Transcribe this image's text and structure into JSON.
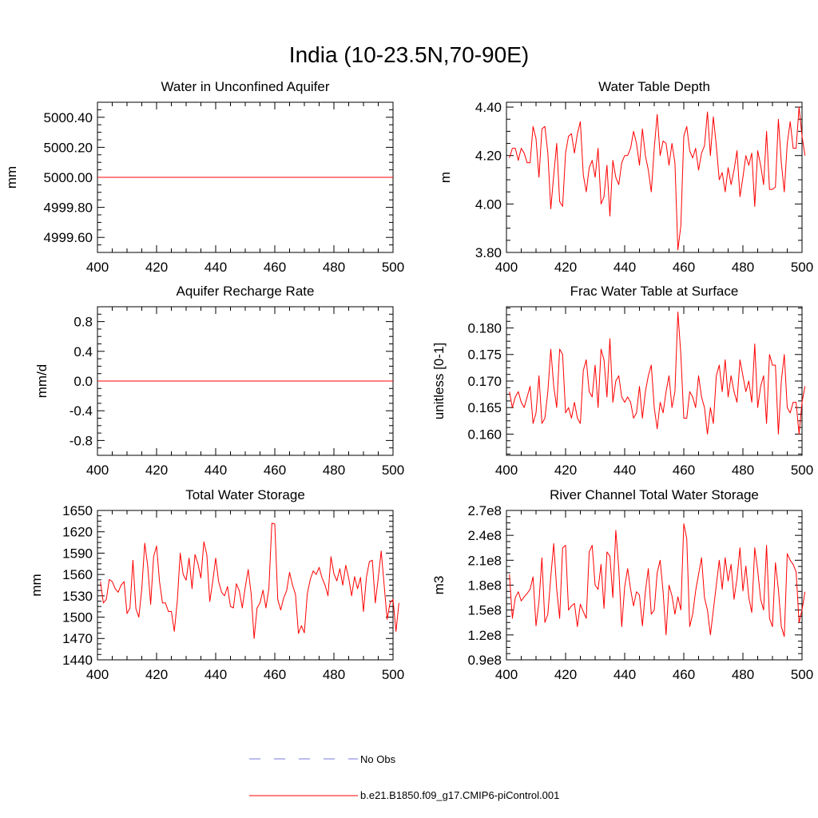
{
  "title": "India (10-23.5N,70-90E)",
  "colors": {
    "series": "#ff0000",
    "obs": "#7a7adc",
    "axis": "#000000"
  },
  "legend": {
    "obs_label": "No Obs",
    "model_label": "b.e21.B1850.f09_g17.CMIP6-piControl.001"
  },
  "chart_data": [
    {
      "type": "line",
      "title": "Water in Unconfined Aquifer",
      "xlabel": "",
      "ylabel": "mm",
      "xlim": [
        400,
        500
      ],
      "ylim": [
        4999.5,
        5000.5
      ],
      "xticks": [
        400,
        420,
        440,
        460,
        480,
        500
      ],
      "xtick_labels": [
        "400",
        "420",
        "440",
        "460",
        "480",
        "500"
      ],
      "yticks": [
        4999.6,
        4999.8,
        5000.0,
        5000.2,
        5000.4
      ],
      "ytick_labels": [
        "4999.60",
        "4999.80",
        "5000.00",
        "5000.20",
        "5000.40"
      ],
      "series": [
        {
          "name": "b.e21.B1850.f09_g17.CMIP6-piControl.001",
          "x": [
            400,
            500
          ],
          "values": [
            5000.0,
            5000.0
          ]
        }
      ]
    },
    {
      "type": "line",
      "title": "Water Table Depth",
      "xlabel": "",
      "ylabel": "m",
      "xlim": [
        400,
        500
      ],
      "ylim": [
        3.8,
        4.42
      ],
      "xticks": [
        400,
        420,
        440,
        460,
        480,
        500
      ],
      "xtick_labels": [
        "400",
        "420",
        "440",
        "460",
        "480",
        "500"
      ],
      "yticks": [
        3.8,
        4.0,
        4.2,
        4.4
      ],
      "ytick_labels": [
        "3.80",
        "4.00",
        "4.20",
        "4.40"
      ],
      "series": [
        {
          "name": "b.e21.B1850.f09_g17.CMIP6-piControl.001",
          "x_start": 401,
          "x_step": 1,
          "values": [
            4.19,
            4.23,
            4.23,
            4.18,
            4.23,
            4.21,
            4.17,
            4.17,
            4.32,
            4.27,
            4.11,
            4.31,
            4.32,
            4.21,
            3.98,
            4.12,
            4.25,
            4.01,
            3.99,
            4.21,
            4.28,
            4.29,
            4.21,
            4.29,
            4.34,
            4.12,
            4.05,
            4.15,
            4.18,
            4.11,
            4.23,
            4.0,
            4.03,
            4.16,
            3.95,
            4.18,
            4.11,
            4.08,
            4.17,
            4.2,
            4.2,
            4.23,
            4.3,
            4.25,
            4.16,
            4.31,
            4.2,
            4.14,
            4.05,
            4.23,
            4.37,
            4.2,
            4.26,
            4.25,
            4.16,
            4.25,
            4.17,
            3.81,
            3.91,
            4.28,
            4.32,
            4.22,
            4.19,
            4.23,
            4.14,
            4.21,
            4.24,
            4.38,
            4.2,
            4.36,
            4.24,
            4.1,
            4.13,
            4.05,
            4.15,
            4.08,
            4.14,
            4.22,
            4.03,
            4.11,
            4.2,
            4.16,
            4.21,
            3.99,
            4.22,
            4.16,
            4.08,
            4.3,
            4.06,
            4.06,
            4.07,
            4.35,
            4.17,
            4.05,
            4.25,
            4.34,
            4.23,
            4.23,
            4.4,
            4.28,
            4.2
          ]
        }
      ]
    },
    {
      "type": "line",
      "title": "Aquifer Recharge Rate",
      "xlabel": "",
      "ylabel": "mm/d",
      "xlim": [
        400,
        500
      ],
      "ylim": [
        -1.0,
        1.0
      ],
      "xticks": [
        400,
        420,
        440,
        460,
        480,
        500
      ],
      "xtick_labels": [
        "400",
        "420",
        "440",
        "460",
        "480",
        "500"
      ],
      "yticks": [
        -0.8,
        -0.4,
        0.0,
        0.4,
        0.8
      ],
      "ytick_labels": [
        "-0.8",
        "-0.4",
        "0.0",
        "0.4",
        "0.8"
      ],
      "series": [
        {
          "name": "b.e21.B1850.f09_g17.CMIP6-piControl.001",
          "x": [
            400,
            500
          ],
          "values": [
            0.0,
            0.0
          ]
        }
      ]
    },
    {
      "type": "line",
      "title": "Frac Water Table at Surface",
      "xlabel": "",
      "ylabel": "unitless [0-1]",
      "xlim": [
        400,
        500
      ],
      "ylim": [
        0.156,
        0.184
      ],
      "xticks": [
        400,
        420,
        440,
        460,
        480,
        500
      ],
      "xtick_labels": [
        "400",
        "420",
        "440",
        "460",
        "480",
        "500"
      ],
      "yticks": [
        0.16,
        0.165,
        0.17,
        0.175,
        0.18
      ],
      "ytick_labels": [
        "0.160",
        "0.165",
        "0.170",
        "0.175",
        "0.180"
      ],
      "series": [
        {
          "name": "b.e21.B1850.f09_g17.CMIP6-piControl.001",
          "x_start": 401,
          "x_step": 1,
          "values": [
            0.168,
            0.165,
            0.167,
            0.168,
            0.166,
            0.165,
            0.167,
            0.169,
            0.162,
            0.164,
            0.171,
            0.162,
            0.163,
            0.168,
            0.176,
            0.169,
            0.165,
            0.176,
            0.175,
            0.164,
            0.165,
            0.163,
            0.166,
            0.163,
            0.162,
            0.172,
            0.174,
            0.168,
            0.167,
            0.173,
            0.165,
            0.176,
            0.174,
            0.167,
            0.178,
            0.166,
            0.17,
            0.171,
            0.167,
            0.166,
            0.167,
            0.166,
            0.163,
            0.164,
            0.169,
            0.163,
            0.168,
            0.171,
            0.173,
            0.165,
            0.161,
            0.166,
            0.164,
            0.168,
            0.171,
            0.165,
            0.168,
            0.183,
            0.175,
            0.163,
            0.163,
            0.168,
            0.167,
            0.165,
            0.171,
            0.167,
            0.165,
            0.16,
            0.165,
            0.162,
            0.171,
            0.173,
            0.168,
            0.174,
            0.167,
            0.171,
            0.168,
            0.166,
            0.174,
            0.171,
            0.168,
            0.17,
            0.166,
            0.177,
            0.165,
            0.169,
            0.171,
            0.162,
            0.175,
            0.173,
            0.173,
            0.16,
            0.17,
            0.175,
            0.165,
            0.164,
            0.166,
            0.166,
            0.16,
            0.166,
            0.169
          ]
        }
      ]
    },
    {
      "type": "line",
      "title": "Total Water Storage",
      "xlabel": "",
      "ylabel": "mm",
      "xlim": [
        400,
        500
      ],
      "ylim": [
        1440,
        1650
      ],
      "xticks": [
        400,
        420,
        440,
        460,
        480,
        500
      ],
      "xtick_labels": [
        "400",
        "420",
        "440",
        "460",
        "480",
        "500"
      ],
      "yticks": [
        1440,
        1470,
        1500,
        1530,
        1560,
        1590,
        1620,
        1650
      ],
      "ytick_labels": [
        "1440",
        "1470",
        "1500",
        "1530",
        "1560",
        "1590",
        "1620",
        "1650"
      ],
      "series": [
        {
          "name": "b.e21.B1850.f09_g17.CMIP6-piControl.001",
          "x_start": 401,
          "x_step": 1,
          "values": [
            1550,
            1520,
            1525,
            1553,
            1550,
            1540,
            1535,
            1545,
            1550,
            1505,
            1513,
            1580,
            1512,
            1500,
            1540,
            1604,
            1572,
            1518,
            1585,
            1600,
            1550,
            1520,
            1520,
            1508,
            1508,
            1480,
            1522,
            1590,
            1560,
            1552,
            1583,
            1540,
            1588,
            1575,
            1555,
            1606,
            1588,
            1522,
            1550,
            1583,
            1550,
            1535,
            1530,
            1543,
            1515,
            1513,
            1547,
            1537,
            1513,
            1542,
            1567,
            1533,
            1470,
            1513,
            1520,
            1538,
            1513,
            1540,
            1632,
            1631,
            1525,
            1510,
            1527,
            1537,
            1563,
            1545,
            1532,
            1477,
            1488,
            1478,
            1533,
            1553,
            1565,
            1560,
            1570,
            1555,
            1545,
            1530,
            1585,
            1561,
            1551,
            1568,
            1545,
            1573,
            1555,
            1530,
            1557,
            1540,
            1556,
            1508,
            1556,
            1578,
            1580,
            1520,
            1555,
            1593,
            1545,
            1497,
            1520,
            1525,
            1480,
            1520
          ]
        }
      ]
    },
    {
      "type": "line",
      "title": "River Channel Total Water Storage",
      "xlabel": "",
      "ylabel": "m3",
      "xlim": [
        400,
        500
      ],
      "ylim": [
        90000000,
        270000000
      ],
      "xticks": [
        400,
        420,
        440,
        460,
        480,
        500
      ],
      "xtick_labels": [
        "400",
        "420",
        "440",
        "460",
        "480",
        "500"
      ],
      "yticks": [
        90000000,
        120000000,
        150000000,
        180000000,
        210000000,
        240000000,
        270000000
      ],
      "ytick_labels": [
        "0.9e8",
        "1.2e8",
        "1.5e8",
        "1.8e8",
        "2.1e8",
        "2.4e8",
        "2.7e8"
      ],
      "series": [
        {
          "name": "b.e21.B1850.f09_g17.CMIP6-piControl.001",
          "x_start": 401,
          "x_step": 1,
          "values": [
            193000000,
            140000000,
            165000000,
            172000000,
            161000000,
            166000000,
            170000000,
            175000000,
            190000000,
            131000000,
            160000000,
            213000000,
            135000000,
            145000000,
            190000000,
            230000000,
            175000000,
            140000000,
            225000000,
            228000000,
            150000000,
            155000000,
            158000000,
            130000000,
            157000000,
            148000000,
            140000000,
            220000000,
            228000000,
            180000000,
            175000000,
            205000000,
            152000000,
            220000000,
            215000000,
            165000000,
            246000000,
            200000000,
            130000000,
            178000000,
            200000000,
            175000000,
            155000000,
            172000000,
            168000000,
            131000000,
            172000000,
            200000000,
            145000000,
            150000000,
            195000000,
            210000000,
            172000000,
            120000000,
            180000000,
            167000000,
            145000000,
            166000000,
            150000000,
            254000000,
            236000000,
            130000000,
            145000000,
            173000000,
            193000000,
            213000000,
            165000000,
            150000000,
            120000000,
            150000000,
            180000000,
            210000000,
            175000000,
            213000000,
            185000000,
            205000000,
            163000000,
            188000000,
            225000000,
            173000000,
            203000000,
            165000000,
            147000000,
            225000000,
            198000000,
            163000000,
            150000000,
            228000000,
            140000000,
            130000000,
            207000000,
            175000000,
            130000000,
            118000000,
            218000000,
            210000000,
            205000000,
            196000000,
            135000000,
            150000000,
            172000000
          ]
        }
      ]
    }
  ]
}
